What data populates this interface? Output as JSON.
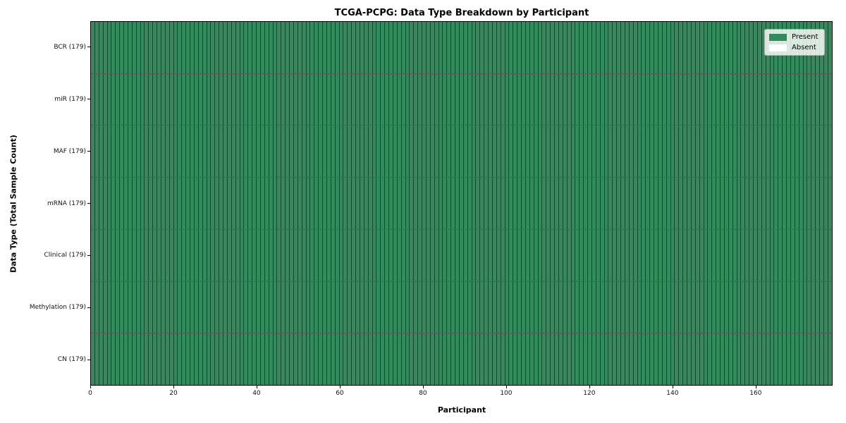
{
  "chart_data": {
    "type": "heatmap",
    "title": "TCGA-PCPG: Data Type Breakdown by Participant",
    "xlabel": "Participant",
    "ylabel": "Data Type (Total Sample Count)",
    "n_participants": 179,
    "x_ticks": [
      0,
      20,
      40,
      60,
      80,
      100,
      120,
      140,
      160
    ],
    "xlim": [
      0,
      178.5
    ],
    "grid": "cell-edges-only",
    "cell_value_encoding": {
      "1": "Present",
      "0": "Absent"
    },
    "rows": [
      {
        "label": "BCR (179)",
        "data_type": "BCR",
        "total_samples": 179,
        "present_count": 179,
        "absent_indices": []
      },
      {
        "label": "miR (179)",
        "data_type": "miR",
        "total_samples": 179,
        "present_count": 179,
        "absent_indices": []
      },
      {
        "label": "MAF (179)",
        "data_type": "MAF",
        "total_samples": 179,
        "present_count": 179,
        "absent_indices": []
      },
      {
        "label": "mRNA (179)",
        "data_type": "mRNA",
        "total_samples": 179,
        "present_count": 179,
        "absent_indices": []
      },
      {
        "label": "Clinical (179)",
        "data_type": "Clinical",
        "total_samples": 179,
        "present_count": 179,
        "absent_indices": []
      },
      {
        "label": "Methylation (179)",
        "data_type": "Methylation",
        "total_samples": 179,
        "present_count": 179,
        "absent_indices": []
      },
      {
        "label": "CN (179)",
        "data_type": "CN",
        "total_samples": 179,
        "present_count": 179,
        "absent_indices": []
      }
    ],
    "legend": {
      "position": "upper right",
      "entries": [
        {
          "label": "Present",
          "color": "#338a5c"
        },
        {
          "label": "Absent",
          "color": "#ffffff"
        }
      ]
    },
    "colors": {
      "present": "#338a5c",
      "absent": "#ffffff",
      "cell_edge": "rgba(0,0,0,0.5)",
      "row_separator": "rgba(0,0,0,0.65)",
      "spine": "#000000"
    }
  }
}
